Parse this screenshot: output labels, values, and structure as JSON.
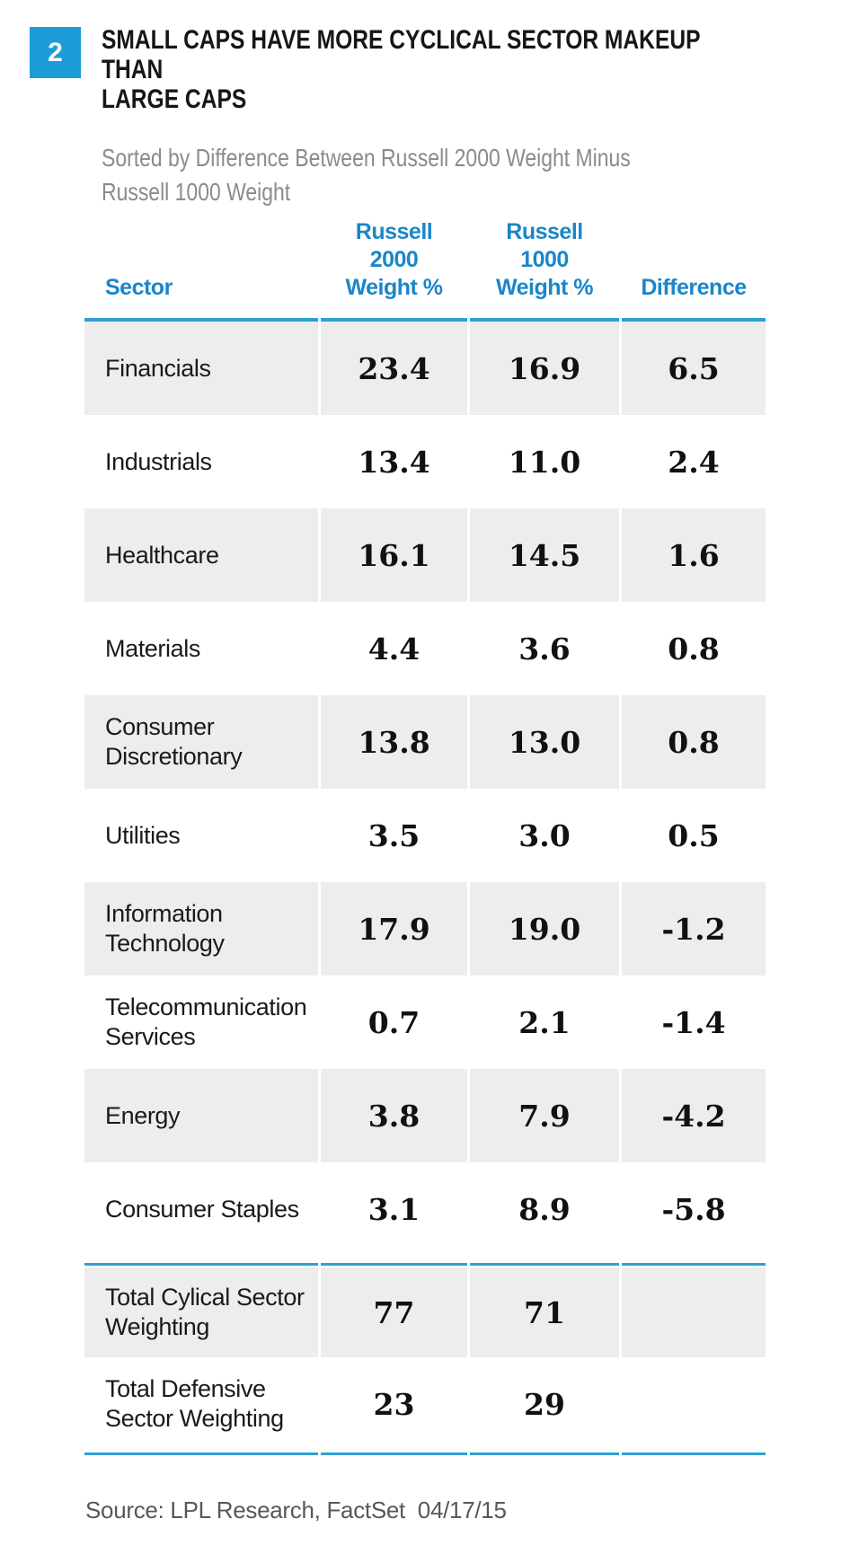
{
  "figure": {
    "number": "2",
    "title": "SMALL CAPS HAVE MORE CYCLICAL SECTOR MAKEUP THAN\nLARGE CAPS",
    "subtitle": "Sorted by Difference Between Russell 2000 Weight Minus\nRussell 1000 Weight"
  },
  "chart_data": {
    "type": "table",
    "columns": [
      "Sector",
      "Russell 2000 Weight %",
      "Russell 1000 Weight %",
      "Difference"
    ],
    "columns_display": [
      "Sector",
      "Russell\n2000\nWeight %",
      "Russell\n1000\nWeight %",
      "Difference"
    ],
    "sort_note": "Sorted by difference between Russell 2000 weight minus Russell 1000 weight",
    "rows": [
      {
        "sector": "Financials",
        "r2000": "23.4",
        "r1000": "16.9",
        "diff": "6.5"
      },
      {
        "sector": "Industrials",
        "r2000": "13.4",
        "r1000": "11.0",
        "diff": "2.4"
      },
      {
        "sector": "Healthcare",
        "r2000": "16.1",
        "r1000": "14.5",
        "diff": "1.6"
      },
      {
        "sector": "Materials",
        "r2000": "4.4",
        "r1000": "3.6",
        "diff": "0.8"
      },
      {
        "sector": "Consumer Discretionary",
        "r2000": "13.8",
        "r1000": "13.0",
        "diff": "0.8"
      },
      {
        "sector": "Utilities",
        "r2000": "3.5",
        "r1000": "3.0",
        "diff": "0.5"
      },
      {
        "sector": "Information Technology",
        "r2000": "17.9",
        "r1000": "19.0",
        "diff": "-1.2"
      },
      {
        "sector": "Telecommunication Services",
        "r2000": "0.7",
        "r1000": "2.1",
        "diff": "-1.4"
      },
      {
        "sector": "Energy",
        "r2000": "3.8",
        "r1000": "7.9",
        "diff": "-4.2"
      },
      {
        "sector": "Consumer Staples",
        "r2000": "3.1",
        "r1000": "8.9",
        "diff": "-5.8"
      }
    ],
    "totals": [
      {
        "sector": "Total Cylical Sector Weighting",
        "r2000": "77",
        "r1000": "71",
        "diff": ""
      },
      {
        "sector": "Total Defensive Sector Weighting",
        "r2000": "23",
        "r1000": "29",
        "diff": ""
      }
    ]
  },
  "source": "Source: LPL Research, FactSet  04/17/15",
  "colors": {
    "accent_blue": "#1b9cd8",
    "header_text_blue": "#1b86c8",
    "rule_blue": "#2da0d4",
    "row_gray": "#ededed",
    "subtitle_gray": "#8b8b8d",
    "source_gray": "#58585a"
  }
}
